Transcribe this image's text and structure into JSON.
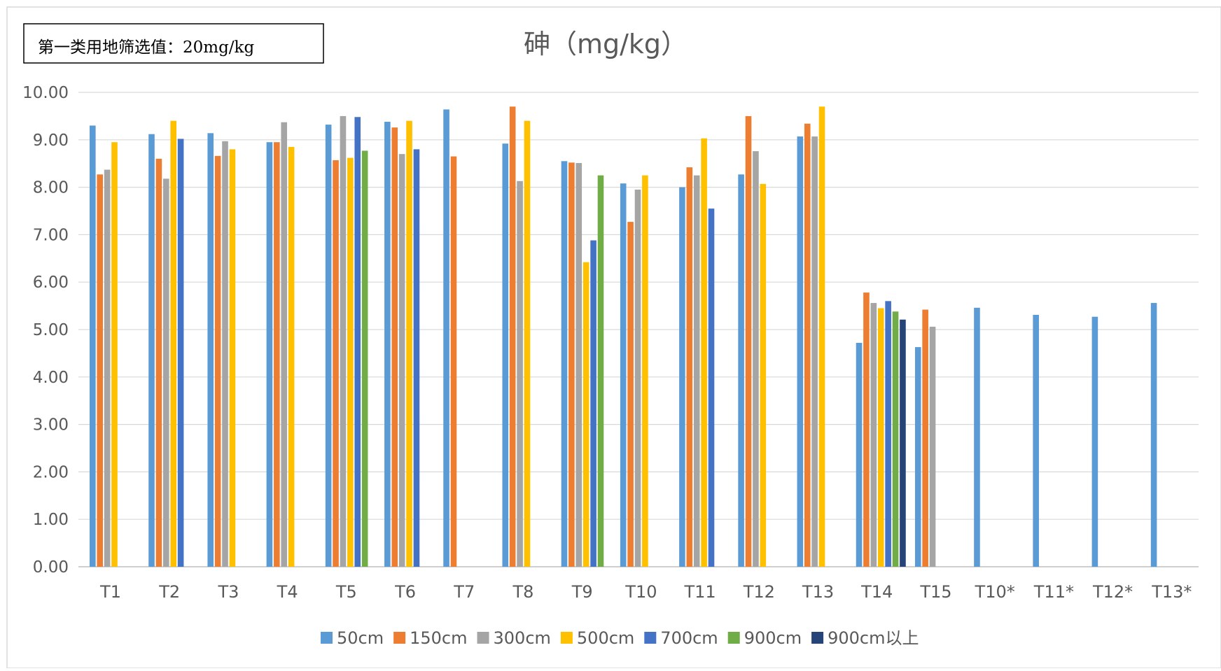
{
  "chart_data": {
    "type": "bar",
    "title": "砷（mg/kg）",
    "annotation": "第一类用地筛选值：20mg/kg",
    "xlabel": "",
    "ylabel": "",
    "ylim": [
      0,
      10
    ],
    "yticks": [
      "0.00",
      "1.00",
      "2.00",
      "3.00",
      "4.00",
      "5.00",
      "6.00",
      "7.00",
      "8.00",
      "9.00",
      "10.00"
    ],
    "grid": true,
    "legend_position": "bottom",
    "categories": [
      "T1",
      "T2",
      "T3",
      "T4",
      "T5",
      "T6",
      "T7",
      "T8",
      "T9",
      "T10",
      "T11",
      "T12",
      "T13",
      "T14",
      "T15",
      "T10*",
      "T11*",
      "T12*",
      "T13*"
    ],
    "series": [
      {
        "name": "50cm",
        "color": "#5B9BD5",
        "values": [
          9.3,
          9.12,
          9.14,
          8.95,
          9.32,
          9.38,
          9.64,
          8.92,
          8.55,
          8.08,
          8.0,
          8.27,
          9.07,
          4.72,
          4.63,
          5.46,
          5.31,
          5.27,
          5.56
        ]
      },
      {
        "name": "150cm",
        "color": "#ED7D31",
        "values": [
          8.27,
          8.6,
          8.66,
          8.95,
          8.57,
          9.26,
          8.65,
          9.7,
          8.52,
          7.27,
          8.42,
          9.5,
          9.34,
          5.78,
          5.42,
          null,
          null,
          null,
          null
        ]
      },
      {
        "name": "300cm",
        "color": "#A5A5A5",
        "values": [
          8.37,
          8.18,
          8.97,
          9.37,
          9.5,
          8.7,
          null,
          8.13,
          8.51,
          7.95,
          8.25,
          8.76,
          9.07,
          5.56,
          5.06,
          null,
          null,
          null,
          null
        ]
      },
      {
        "name": "500cm",
        "color": "#FFC000",
        "values": [
          8.95,
          9.4,
          8.8,
          8.85,
          8.62,
          9.4,
          null,
          9.4,
          6.42,
          8.25,
          9.03,
          8.07,
          9.7,
          5.45,
          null,
          null,
          null,
          null,
          null
        ]
      },
      {
        "name": "700cm",
        "color": "#4472C4",
        "values": [
          null,
          9.02,
          null,
          null,
          9.48,
          8.8,
          null,
          null,
          6.88,
          null,
          7.55,
          null,
          null,
          5.6,
          null,
          null,
          null,
          null,
          null
        ]
      },
      {
        "name": "900cm",
        "color": "#70AD47",
        "values": [
          null,
          null,
          null,
          null,
          8.77,
          null,
          null,
          null,
          8.25,
          null,
          null,
          null,
          null,
          5.38,
          null,
          null,
          null,
          null,
          null
        ]
      },
      {
        "name": "900cm以上",
        "color": "#264478",
        "values": [
          null,
          null,
          null,
          null,
          null,
          null,
          null,
          null,
          null,
          null,
          null,
          null,
          null,
          5.21,
          null,
          null,
          null,
          null,
          null
        ]
      }
    ]
  }
}
